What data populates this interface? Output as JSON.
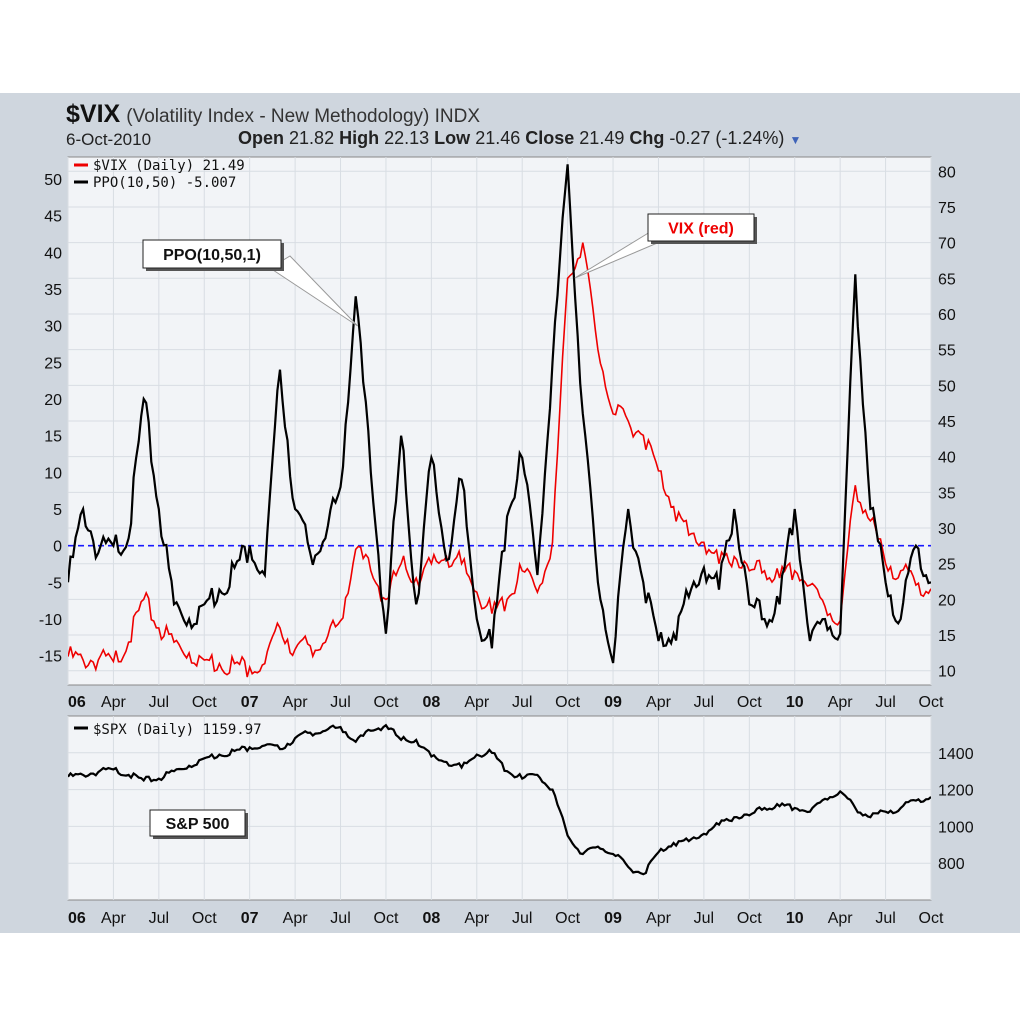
{
  "header": {
    "symbol": "$VIX",
    "description": "(Volatility Index - New Methodology) INDX",
    "date": "6-Oct-2010",
    "open_label": "Open",
    "open": "21.82",
    "high_label": "High",
    "high": "22.13",
    "low_label": "Low",
    "low": "21.46",
    "close_label": "Close",
    "close": "21.49",
    "chg_label": "Chg",
    "chg": "-0.27 (-1.24%)"
  },
  "colors": {
    "vix": "#ee0000",
    "ppo": "#000000",
    "spx": "#000000",
    "zero_line": "#1a1aff",
    "panel_bg": "#f2f4f7",
    "frame_bg": "#cfd6de"
  },
  "chart_data": [
    {
      "type": "line",
      "title": "$VIX (Volatility Index - New Methodology) INDX",
      "x_tick_labels": [
        "06",
        "Apr",
        "Jul",
        "Oct",
        "07",
        "Apr",
        "Jul",
        "Oct",
        "08",
        "Apr",
        "Jul",
        "Oct",
        "09",
        "Apr",
        "Jul",
        "Oct",
        "10",
        "Apr",
        "Jul",
        "Oct"
      ],
      "xlim": [
        "2006-01",
        "2010-10"
      ],
      "left_axis": {
        "ticks": [
          50,
          45,
          40,
          35,
          30,
          25,
          20,
          15,
          10,
          5,
          0,
          -5,
          -10,
          -15
        ],
        "ylim": [
          -19,
          53
        ]
      },
      "right_axis": {
        "ticks": [
          80,
          75,
          70,
          65,
          60,
          55,
          50,
          45,
          40,
          35,
          30,
          25,
          20,
          15,
          10
        ],
        "ylim": [
          8,
          82
        ]
      },
      "legend": [
        {
          "name": "$VIX (Daily) 21.49",
          "color": "#ee0000"
        },
        {
          "name": "PPO(10,50) -5.007",
          "color": "#000000"
        }
      ],
      "reference_line": {
        "axis": "left",
        "value": 0
      },
      "annotations": [
        {
          "text": "PPO(10,50,1)",
          "points_to": "2007-08"
        },
        {
          "text": "VIX (red)",
          "points_to": "2008-11"
        }
      ],
      "series": [
        {
          "name": "$VIX (Daily)",
          "axis": "right",
          "color": "#ee0000",
          "x": [
            "2006-01",
            "2006-02",
            "2006-03",
            "2006-04",
            "2006-05",
            "2006-06",
            "2006-07",
            "2006-08",
            "2006-09",
            "2006-10",
            "2006-11",
            "2006-12",
            "2007-01",
            "2007-02",
            "2007-03",
            "2007-04",
            "2007-05",
            "2007-06",
            "2007-07",
            "2007-08",
            "2007-09",
            "2007-10",
            "2007-11",
            "2007-12",
            "2008-01",
            "2008-02",
            "2008-03",
            "2008-04",
            "2008-05",
            "2008-06",
            "2008-07",
            "2008-08",
            "2008-09",
            "2008-10",
            "2008-11",
            "2008-12",
            "2009-01",
            "2009-02",
            "2009-03",
            "2009-04",
            "2009-05",
            "2009-06",
            "2009-07",
            "2009-08",
            "2009-09",
            "2009-10",
            "2009-11",
            "2009-12",
            "2010-01",
            "2010-02",
            "2010-03",
            "2010-04",
            "2010-05",
            "2010-06",
            "2010-07",
            "2010-08",
            "2010-09",
            "2010-10"
          ],
          "values": [
            12,
            11.5,
            11.5,
            11.3,
            14,
            20,
            16,
            14,
            12.5,
            11.5,
            11,
            11,
            10.5,
            11,
            16,
            13,
            13.5,
            14,
            17,
            27,
            24,
            20,
            25,
            23,
            25,
            26,
            25,
            21,
            18,
            20,
            24,
            21,
            28,
            65,
            70,
            55,
            46,
            45,
            43,
            38,
            33,
            29,
            28,
            25,
            26,
            24,
            24,
            23,
            24,
            22,
            19,
            17,
            36,
            31,
            25,
            24,
            22,
            21.5
          ]
        },
        {
          "name": "PPO(10,50)",
          "axis": "left",
          "color": "#000000",
          "x": [
            "2006-01",
            "2006-02",
            "2006-03",
            "2006-04",
            "2006-05",
            "2006-06",
            "2006-07",
            "2006-08",
            "2006-09",
            "2006-10",
            "2006-11",
            "2006-12",
            "2007-01",
            "2007-02",
            "2007-03",
            "2007-04",
            "2007-05",
            "2007-06",
            "2007-07",
            "2007-08",
            "2007-09",
            "2007-10",
            "2007-11",
            "2007-12",
            "2008-01",
            "2008-02",
            "2008-03",
            "2008-04",
            "2008-05",
            "2008-06",
            "2008-07",
            "2008-08",
            "2008-09",
            "2008-10",
            "2008-11",
            "2008-12",
            "2009-01",
            "2009-02",
            "2009-03",
            "2009-04",
            "2009-05",
            "2009-06",
            "2009-07",
            "2009-08",
            "2009-09",
            "2009-10",
            "2009-11",
            "2009-12",
            "2010-01",
            "2010-02",
            "2010-03",
            "2010-04",
            "2010-05",
            "2010-06",
            "2010-07",
            "2010-08",
            "2010-09",
            "2010-10"
          ],
          "values": [
            -5,
            5,
            -1,
            0,
            1,
            20,
            5,
            -8,
            -10,
            -8,
            -6,
            -3,
            0,
            -4,
            24,
            5,
            -1,
            1,
            8,
            34,
            10,
            -12,
            15,
            -8,
            12,
            -2,
            9,
            -10,
            -14,
            4,
            12,
            -4,
            25,
            52,
            18,
            -5,
            -16,
            5,
            -5,
            -13,
            -12,
            -7,
            -3,
            -6,
            5,
            -8,
            -10,
            -8,
            5,
            -13,
            -10,
            -12,
            37,
            5,
            -5,
            -10,
            0,
            -5
          ]
        }
      ]
    },
    {
      "type": "line",
      "x_tick_labels": [
        "06",
        "Apr",
        "Jul",
        "Oct",
        "07",
        "Apr",
        "Jul",
        "Oct",
        "08",
        "Apr",
        "Jul",
        "Oct",
        "09",
        "Apr",
        "Jul",
        "Oct",
        "10",
        "Apr",
        "Jul",
        "Oct"
      ],
      "xlim": [
        "2006-01",
        "2010-10"
      ],
      "right_axis": {
        "ticks": [
          1400,
          1200,
          1000,
          800
        ],
        "ylim": [
          600,
          1600
        ]
      },
      "legend": [
        {
          "name": "$SPX (Daily) 1159.97",
          "color": "#000000"
        }
      ],
      "annotations": [
        {
          "text": "S&P 500"
        }
      ],
      "series": [
        {
          "name": "$SPX (Daily)",
          "axis": "right",
          "color": "#000000",
          "x": [
            "2006-01",
            "2006-02",
            "2006-03",
            "2006-04",
            "2006-05",
            "2006-06",
            "2006-07",
            "2006-08",
            "2006-09",
            "2006-10",
            "2006-11",
            "2006-12",
            "2007-01",
            "2007-02",
            "2007-03",
            "2007-04",
            "2007-05",
            "2007-06",
            "2007-07",
            "2007-08",
            "2007-09",
            "2007-10",
            "2007-11",
            "2007-12",
            "2008-01",
            "2008-02",
            "2008-03",
            "2008-04",
            "2008-05",
            "2008-06",
            "2008-07",
            "2008-08",
            "2008-09",
            "2008-10",
            "2008-11",
            "2008-12",
            "2009-01",
            "2009-02",
            "2009-03",
            "2009-04",
            "2009-05",
            "2009-06",
            "2009-07",
            "2009-08",
            "2009-09",
            "2009-10",
            "2009-11",
            "2009-12",
            "2010-01",
            "2010-02",
            "2010-03",
            "2010-04",
            "2010-05",
            "2010-06",
            "2010-07",
            "2010-08",
            "2010-09",
            "2010-10"
          ],
          "values": [
            1270,
            1280,
            1295,
            1310,
            1280,
            1250,
            1260,
            1300,
            1330,
            1370,
            1390,
            1410,
            1430,
            1440,
            1420,
            1480,
            1510,
            1520,
            1540,
            1460,
            1520,
            1550,
            1470,
            1470,
            1380,
            1350,
            1320,
            1390,
            1400,
            1300,
            1260,
            1280,
            1200,
            950,
            850,
            890,
            850,
            780,
            740,
            860,
            910,
            920,
            960,
            1010,
            1050,
            1060,
            1100,
            1110,
            1100,
            1080,
            1150,
            1190,
            1100,
            1050,
            1080,
            1100,
            1140,
            1160
          ]
        }
      ]
    }
  ]
}
